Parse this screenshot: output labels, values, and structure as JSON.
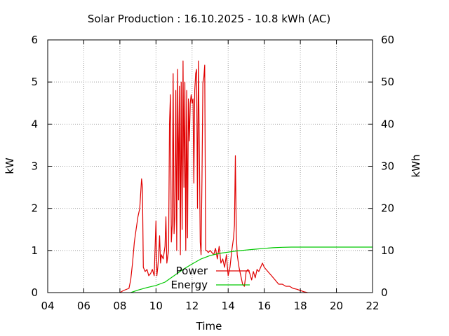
{
  "chart_data": {
    "type": "line",
    "title": "Solar Production : 16.10.2025 - 10.8 kWh (AC)",
    "xlabel": "Time",
    "ylabel": "kW",
    "y2label": "kWh",
    "xlim": [
      4,
      22
    ],
    "ylim": [
      0,
      6
    ],
    "y2lim": [
      0,
      60
    ],
    "xticks": [
      "04",
      "06",
      "08",
      "10",
      "12",
      "14",
      "16",
      "18",
      "20",
      "22"
    ],
    "yticks": [
      "0",
      "1",
      "2",
      "3",
      "4",
      "5",
      "6"
    ],
    "y2ticks": [
      "0",
      "10",
      "20",
      "30",
      "40",
      "50",
      "60"
    ],
    "grid": true,
    "legend_position": "inside-bottom-center",
    "series": [
      {
        "name": "Power",
        "axis": "left",
        "unit": "kW",
        "color": "#e00000",
        "points": [
          [
            8.0,
            0.0
          ],
          [
            8.2,
            0.05
          ],
          [
            8.5,
            0.1
          ],
          [
            8.6,
            0.3
          ],
          [
            8.7,
            0.7
          ],
          [
            8.8,
            1.2
          ],
          [
            8.9,
            1.5
          ],
          [
            9.0,
            1.8
          ],
          [
            9.1,
            2.0
          ],
          [
            9.2,
            2.7
          ],
          [
            9.25,
            2.5
          ],
          [
            9.3,
            0.6
          ],
          [
            9.4,
            0.5
          ],
          [
            9.5,
            0.55
          ],
          [
            9.6,
            0.4
          ],
          [
            9.7,
            0.45
          ],
          [
            9.8,
            0.55
          ],
          [
            9.9,
            0.4
          ],
          [
            10.0,
            1.7
          ],
          [
            10.05,
            0.4
          ],
          [
            10.1,
            0.6
          ],
          [
            10.15,
            0.9
          ],
          [
            10.2,
            1.35
          ],
          [
            10.25,
            0.7
          ],
          [
            10.3,
            0.9
          ],
          [
            10.4,
            0.8
          ],
          [
            10.5,
            1.1
          ],
          [
            10.55,
            1.8
          ],
          [
            10.6,
            0.7
          ],
          [
            10.7,
            1.0
          ],
          [
            10.75,
            4.0
          ],
          [
            10.8,
            4.7
          ],
          [
            10.85,
            1.2
          ],
          [
            10.9,
            1.6
          ],
          [
            10.95,
            5.2
          ],
          [
            11.0,
            1.4
          ],
          [
            11.05,
            1.8
          ],
          [
            11.1,
            4.8
          ],
          [
            11.15,
            1.0
          ],
          [
            11.2,
            5.3
          ],
          [
            11.25,
            2.2
          ],
          [
            11.3,
            4.9
          ],
          [
            11.35,
            0.9
          ],
          [
            11.4,
            5.0
          ],
          [
            11.45,
            1.5
          ],
          [
            11.5,
            5.5
          ],
          [
            11.55,
            2.5
          ],
          [
            11.6,
            5.0
          ],
          [
            11.65,
            1.0
          ],
          [
            11.7,
            4.8
          ],
          [
            11.75,
            1.3
          ],
          [
            11.8,
            4.6
          ],
          [
            11.85,
            3.6
          ],
          [
            11.9,
            4.5
          ],
          [
            11.95,
            4.7
          ],
          [
            12.0,
            4.5
          ],
          [
            12.05,
            4.6
          ],
          [
            12.1,
            2.6
          ],
          [
            12.15,
            4.8
          ],
          [
            12.2,
            5.2
          ],
          [
            12.25,
            5.3
          ],
          [
            12.3,
            2.0
          ],
          [
            12.35,
            5.5
          ],
          [
            12.4,
            3.5
          ],
          [
            12.45,
            1.2
          ],
          [
            12.5,
            0.9
          ],
          [
            12.55,
            2.7
          ],
          [
            12.6,
            5.0
          ],
          [
            12.65,
            5.1
          ],
          [
            12.7,
            5.4
          ],
          [
            12.75,
            1.0
          ],
          [
            12.8,
            1.0
          ],
          [
            12.9,
            0.95
          ],
          [
            13.0,
            1.0
          ],
          [
            13.1,
            0.95
          ],
          [
            13.2,
            0.9
          ],
          [
            13.3,
            1.05
          ],
          [
            13.4,
            0.8
          ],
          [
            13.5,
            1.1
          ],
          [
            13.6,
            0.7
          ],
          [
            13.7,
            0.8
          ],
          [
            13.8,
            0.6
          ],
          [
            13.9,
            0.9
          ],
          [
            14.0,
            0.4
          ],
          [
            14.1,
            0.6
          ],
          [
            14.2,
            1.0
          ],
          [
            14.3,
            1.3
          ],
          [
            14.35,
            1.6
          ],
          [
            14.4,
            3.25
          ],
          [
            14.45,
            1.4
          ],
          [
            14.5,
            0.9
          ],
          [
            14.6,
            0.6
          ],
          [
            14.7,
            0.4
          ],
          [
            14.8,
            0.2
          ],
          [
            14.9,
            0.15
          ],
          [
            15.0,
            0.5
          ],
          [
            15.1,
            0.55
          ],
          [
            15.2,
            0.45
          ],
          [
            15.3,
            0.3
          ],
          [
            15.4,
            0.5
          ],
          [
            15.5,
            0.35
          ],
          [
            15.6,
            0.55
          ],
          [
            15.7,
            0.5
          ],
          [
            15.8,
            0.6
          ],
          [
            15.9,
            0.7
          ],
          [
            16.0,
            0.6
          ],
          [
            16.2,
            0.5
          ],
          [
            16.4,
            0.4
          ],
          [
            16.6,
            0.3
          ],
          [
            16.8,
            0.2
          ],
          [
            17.0,
            0.2
          ],
          [
            17.2,
            0.15
          ],
          [
            17.4,
            0.15
          ],
          [
            17.6,
            0.1
          ],
          [
            17.8,
            0.08
          ],
          [
            18.0,
            0.05
          ],
          [
            18.2,
            0.02
          ],
          [
            18.4,
            0.0
          ]
        ]
      },
      {
        "name": "Energy",
        "axis": "right",
        "unit": "kWh",
        "color": "#00c800",
        "points": [
          [
            8.6,
            0.0
          ],
          [
            9.0,
            0.6
          ],
          [
            9.5,
            1.2
          ],
          [
            10.0,
            1.7
          ],
          [
            10.5,
            2.5
          ],
          [
            11.0,
            4.0
          ],
          [
            11.5,
            5.5
          ],
          [
            12.0,
            6.8
          ],
          [
            12.5,
            8.0
          ],
          [
            13.0,
            8.8
          ],
          [
            13.5,
            9.3
          ],
          [
            14.0,
            9.6
          ],
          [
            14.5,
            9.9
          ],
          [
            15.0,
            10.1
          ],
          [
            15.5,
            10.3
          ],
          [
            16.0,
            10.5
          ],
          [
            16.5,
            10.65
          ],
          [
            17.0,
            10.75
          ],
          [
            17.5,
            10.8
          ],
          [
            18.0,
            10.8
          ],
          [
            20.0,
            10.8
          ],
          [
            22.0,
            10.8
          ]
        ]
      }
    ]
  }
}
